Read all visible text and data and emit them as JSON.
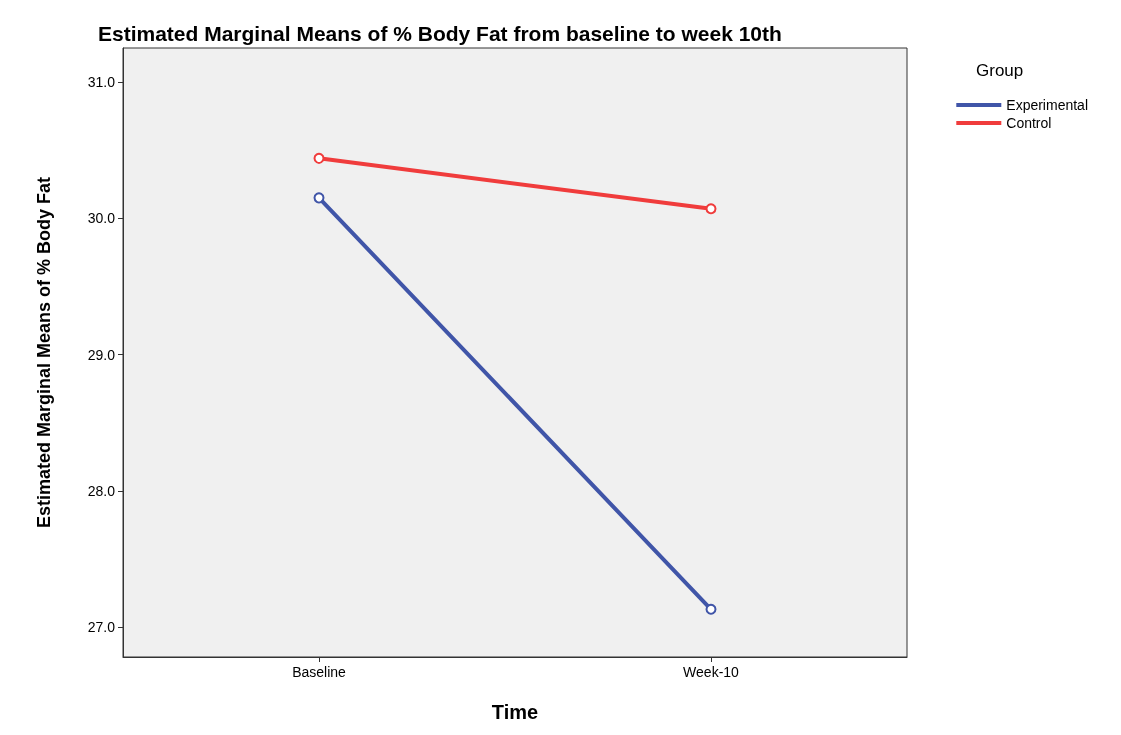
{
  "chart_data": {
    "type": "line",
    "title": "Estimated Marginal Means of % Body Fat from baseline to week 10th",
    "xlabel": "Time",
    "ylabel": "Estimated Marginal Means of % Body Fat",
    "legend_title": "Group",
    "categories": [
      "Baseline",
      "Week-10"
    ],
    "series": [
      {
        "name": "Experimental",
        "color": "#4055a8",
        "values": [
          30.15,
          27.13
        ]
      },
      {
        "name": "Control",
        "color": "#f03c3c",
        "values": [
          30.44,
          30.07
        ]
      }
    ],
    "ylim": [
      26.78,
      31.25
    ],
    "yticks": [
      {
        "value": 27,
        "label": "27.0"
      },
      {
        "value": 28,
        "label": "28.0"
      },
      {
        "value": 29,
        "label": "29.0"
      },
      {
        "value": 30,
        "label": "30.0"
      },
      {
        "value": 31,
        "label": "31.0"
      }
    ],
    "grid": false,
    "legend": "top right",
    "marker": "circle",
    "line_style": "solid"
  }
}
